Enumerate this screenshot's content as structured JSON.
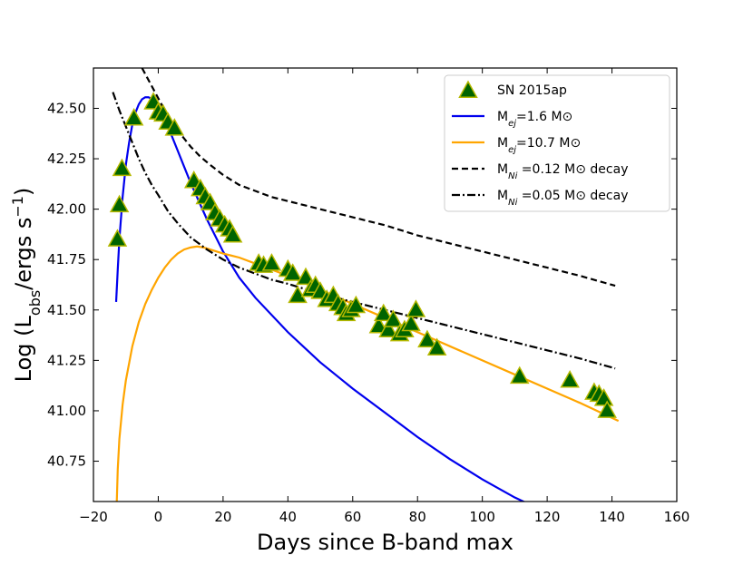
{
  "chart_data": {
    "type": "scatter",
    "title": "",
    "xlabel": "Days since B-band max",
    "ylabel": "Log (L_obs/ergs s^-1)",
    "xlim": [
      -20,
      160
    ],
    "ylim": [
      40.55,
      42.7
    ],
    "x_ticks": [
      -20,
      0,
      20,
      40,
      60,
      80,
      100,
      120,
      140,
      160
    ],
    "y_ticks": [
      40.75,
      41.0,
      41.25,
      41.5,
      41.75,
      42.0,
      42.25,
      42.5
    ],
    "x_tick_labels": [
      "−20",
      "0",
      "20",
      "40",
      "60",
      "80",
      "100",
      "120",
      "140",
      "160"
    ],
    "y_tick_labels": [
      "40.75",
      "41.00",
      "41.25",
      "41.50",
      "41.75",
      "42.00",
      "42.25",
      "42.50"
    ],
    "legend_position": "top-right",
    "legend": [
      {
        "label": "SN 2015ap",
        "sub": "",
        "post": "",
        "kind": "marker",
        "color": "#006400",
        "edge": "#b5b800"
      },
      {
        "label": "M",
        "sub": "ej",
        "post": "=1.6 M⊙",
        "kind": "line",
        "color": "#0000ee",
        "dash": "solid"
      },
      {
        "label": "M",
        "sub": "ej",
        "post": "=10.7 M⊙",
        "kind": "line",
        "color": "#ffa500",
        "dash": "solid"
      },
      {
        "label": "M",
        "sub": "Ni",
        "post": " =0.12 M⊙ decay",
        "kind": "line",
        "color": "#000000",
        "dash": "dashed"
      },
      {
        "label": "M",
        "sub": "Ni",
        "post": " =0.05 M⊙ decay",
        "kind": "line",
        "color": "#000000",
        "dash": "dashdot"
      }
    ],
    "observations": {
      "name": "SN 2015ap",
      "x": [
        -12.6,
        -12.0,
        -11.2,
        -7.5,
        -1.5,
        0.0,
        1.5,
        3.0,
        5.0,
        11.0,
        13.0,
        14.5,
        16.0,
        17.5,
        19.0,
        20.5,
        22.0,
        23.0,
        31.0,
        32.5,
        35.0,
        40.0,
        41.5,
        43.0,
        45.5,
        47.0,
        48.5,
        50.0,
        52.0,
        54.0,
        55.5,
        57.0,
        58.0,
        59.5,
        61.0,
        68.0,
        69.5,
        71.0,
        72.5,
        74.5,
        76.0,
        78.0,
        79.5,
        83.0,
        86.0,
        111.5,
        127.0,
        134.5,
        136.0,
        137.5,
        138.5
      ],
      "y": [
        41.85,
        42.02,
        42.2,
        42.45,
        42.53,
        42.48,
        42.47,
        42.43,
        42.4,
        42.14,
        42.1,
        42.06,
        42.03,
        41.98,
        41.95,
        41.92,
        41.9,
        41.87,
        41.73,
        41.72,
        41.73,
        41.7,
        41.68,
        41.57,
        41.66,
        41.6,
        41.62,
        41.59,
        41.55,
        41.57,
        41.53,
        41.51,
        41.48,
        41.5,
        41.52,
        41.42,
        41.48,
        41.4,
        41.45,
        41.38,
        41.4,
        41.43,
        41.5,
        41.35,
        41.31,
        41.17,
        41.15,
        41.09,
        41.08,
        41.06,
        41.0
      ]
    },
    "series": [
      {
        "name": "Mej=1.6 Msun",
        "color": "#0000ee",
        "dash": "solid",
        "x": [
          -13,
          -12.5,
          -12,
          -11,
          -10,
          -9,
          -8,
          -7,
          -6,
          -5,
          -4,
          -3,
          -2,
          -1,
          0,
          2,
          4,
          6,
          8,
          10,
          15,
          20,
          25,
          30,
          40,
          50,
          60,
          70,
          80,
          90,
          100,
          110,
          112,
          114
        ],
        "y": [
          41.54,
          41.7,
          41.85,
          42.06,
          42.22,
          42.33,
          42.42,
          42.48,
          42.52,
          42.545,
          42.555,
          42.555,
          42.545,
          42.525,
          42.5,
          42.44,
          42.37,
          42.29,
          42.21,
          42.13,
          41.95,
          41.79,
          41.66,
          41.56,
          41.39,
          41.24,
          41.11,
          40.99,
          40.87,
          40.76,
          40.66,
          40.57,
          40.555,
          40.54
        ]
      },
      {
        "name": "Mej=10.7 Msun",
        "color": "#ffa500",
        "dash": "solid",
        "x": [
          -12.8,
          -12.5,
          -12,
          -11,
          -10,
          -8,
          -6,
          -4,
          -2,
          0,
          2,
          4,
          6,
          8,
          10,
          12,
          14,
          16,
          20,
          25,
          30,
          40,
          50,
          60,
          70,
          80,
          90,
          100,
          110,
          120,
          130,
          142
        ],
        "y": [
          40.55,
          40.71,
          40.86,
          41.03,
          41.15,
          41.32,
          41.44,
          41.53,
          41.6,
          41.66,
          41.71,
          41.75,
          41.78,
          41.8,
          41.81,
          41.815,
          41.81,
          41.8,
          41.78,
          41.76,
          41.73,
          41.67,
          41.6,
          41.53,
          41.46,
          41.39,
          41.32,
          41.25,
          41.18,
          41.11,
          41.04,
          40.95
        ]
      },
      {
        "name": "MNi=0.12 Msun decay",
        "color": "#000000",
        "dash": "dashed",
        "x": [
          -5,
          -3,
          -1,
          1,
          3,
          5,
          7,
          10,
          13,
          16,
          20,
          25,
          30,
          35,
          40,
          50,
          60,
          70,
          80,
          90,
          100,
          110,
          120,
          130,
          141
        ],
        "y": [
          42.7,
          42.64,
          42.58,
          42.52,
          42.46,
          42.41,
          42.37,
          42.31,
          42.26,
          42.22,
          42.17,
          42.12,
          42.09,
          42.06,
          42.04,
          42.0,
          41.96,
          41.92,
          41.87,
          41.83,
          41.79,
          41.75,
          41.71,
          41.67,
          41.62
        ]
      },
      {
        "name": "MNi=0.05 Msun decay",
        "color": "#000000",
        "dash": "dashdot",
        "x": [
          -14,
          -12,
          -10,
          -8,
          -6,
          -4,
          -2,
          0,
          3,
          6,
          10,
          15,
          20,
          25,
          30,
          35,
          40,
          50,
          60,
          70,
          80,
          90,
          100,
          110,
          120,
          130,
          141
        ],
        "y": [
          42.58,
          42.49,
          42.41,
          42.33,
          42.25,
          42.18,
          42.12,
          42.07,
          41.99,
          41.93,
          41.86,
          41.8,
          41.75,
          41.71,
          41.68,
          41.65,
          41.63,
          41.58,
          41.54,
          41.5,
          41.46,
          41.42,
          41.38,
          41.34,
          41.3,
          41.26,
          41.21
        ]
      }
    ]
  }
}
